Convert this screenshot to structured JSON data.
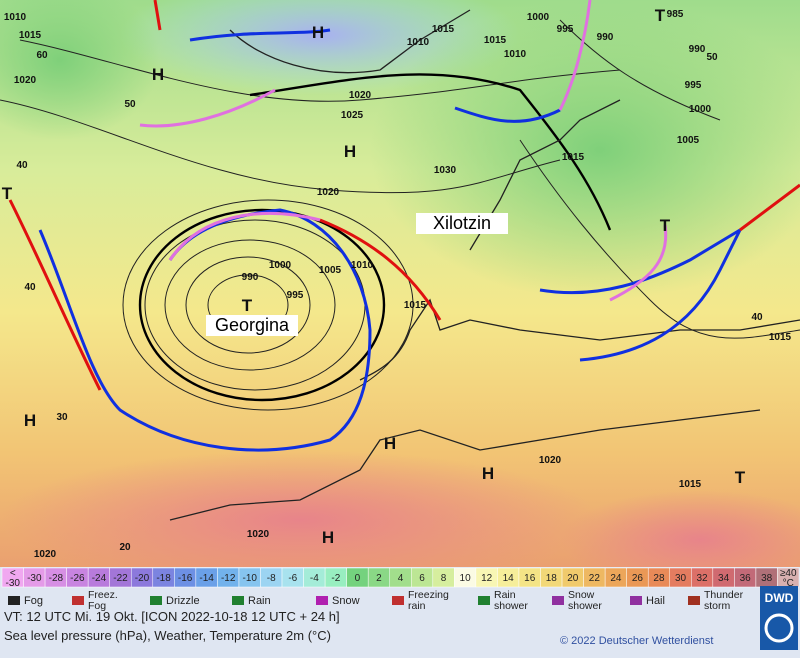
{
  "map": {
    "pressure_labels": [
      "1010",
      "1015",
      "1020",
      "60",
      "50",
      "40",
      "40",
      "30",
      "20",
      "1020",
      "1020",
      "1025",
      "1030",
      "1020",
      "1000",
      "990",
      "995",
      "1005",
      "1010",
      "1015",
      "1010",
      "1015",
      "1015",
      "1010",
      "1000",
      "995",
      "990",
      "985",
      "990",
      "995",
      "1000",
      "1005",
      "1015",
      "1020",
      "1015",
      "1015",
      "1020",
      "40",
      "50"
    ],
    "centers": [
      "H",
      "H",
      "H",
      "H",
      "H",
      "H",
      "H",
      "T",
      "T",
      "T",
      "T",
      "T"
    ],
    "storm_names": [
      "Georgina",
      "Xilotzin"
    ]
  },
  "legend": {
    "scale": [
      {
        "top": "<",
        "bottom": "-30",
        "color": "#f0a8f0"
      },
      {
        "label": "-30",
        "color": "#e49be8"
      },
      {
        "label": "-28",
        "color": "#d68fe4"
      },
      {
        "label": "-26",
        "color": "#c884e0"
      },
      {
        "label": "-24",
        "color": "#b87bdc"
      },
      {
        "label": "-22",
        "color": "#a376d8"
      },
      {
        "label": "-20",
        "color": "#8c79dc"
      },
      {
        "label": "-18",
        "color": "#7b84e0"
      },
      {
        "label": "-16",
        "color": "#6d90e4"
      },
      {
        "label": "-14",
        "color": "#6aa0e8"
      },
      {
        "label": "-12",
        "color": "#72b2ec"
      },
      {
        "label": "-10",
        "color": "#86c4ef"
      },
      {
        "label": "-8",
        "color": "#9cd4f2"
      },
      {
        "label": "-6",
        "color": "#a8e2ee"
      },
      {
        "label": "-4",
        "color": "#a4ecd8"
      },
      {
        "label": "-2",
        "color": "#98eec0"
      },
      {
        "label": "0",
        "color": "#74d27e"
      },
      {
        "label": "2",
        "color": "#8ad886"
      },
      {
        "label": "4",
        "color": "#a2de8c"
      },
      {
        "label": "6",
        "color": "#bce694"
      },
      {
        "label": "8",
        "color": "#d6ee9e"
      },
      {
        "label": "10",
        "color": "#fbfbe4"
      },
      {
        "label": "12",
        "color": "#f8f6b4"
      },
      {
        "label": "14",
        "color": "#f6ee9a"
      },
      {
        "label": "16",
        "color": "#f4e486"
      },
      {
        "label": "18",
        "color": "#f2d878"
      },
      {
        "label": "20",
        "color": "#f0ca6c"
      },
      {
        "label": "22",
        "color": "#eeb862"
      },
      {
        "label": "24",
        "color": "#eca65a"
      },
      {
        "label": "26",
        "color": "#ea9856"
      },
      {
        "label": "28",
        "color": "#e88a58"
      },
      {
        "label": "30",
        "color": "#e47c60"
      },
      {
        "label": "32",
        "color": "#dc7068"
      },
      {
        "label": "34",
        "color": "#d06a70"
      },
      {
        "label": "36",
        "color": "#c26a78"
      },
      {
        "label": "38",
        "color": "#b07078"
      },
      {
        "top": "≥40",
        "bottom": "°C",
        "color": "#d8b0b0"
      }
    ],
    "weather": [
      "Fog",
      "Freez. Fog",
      "Drizzle",
      "Rain",
      "Snow",
      "Freezing rain",
      "Rain shower",
      "Snow shower",
      "Hail",
      "Thunder storm"
    ]
  },
  "footer": {
    "valid_time": "VT: 12 UTC Mi.   19 Okt. [ICON 2022-10-18  12 UTC + 24 h]",
    "description": "Sea level pressure (hPa), Weather, Temperature 2m (°C)",
    "copyright": "© 2022 Deutscher Wetterdienst",
    "logo": "DWD"
  }
}
